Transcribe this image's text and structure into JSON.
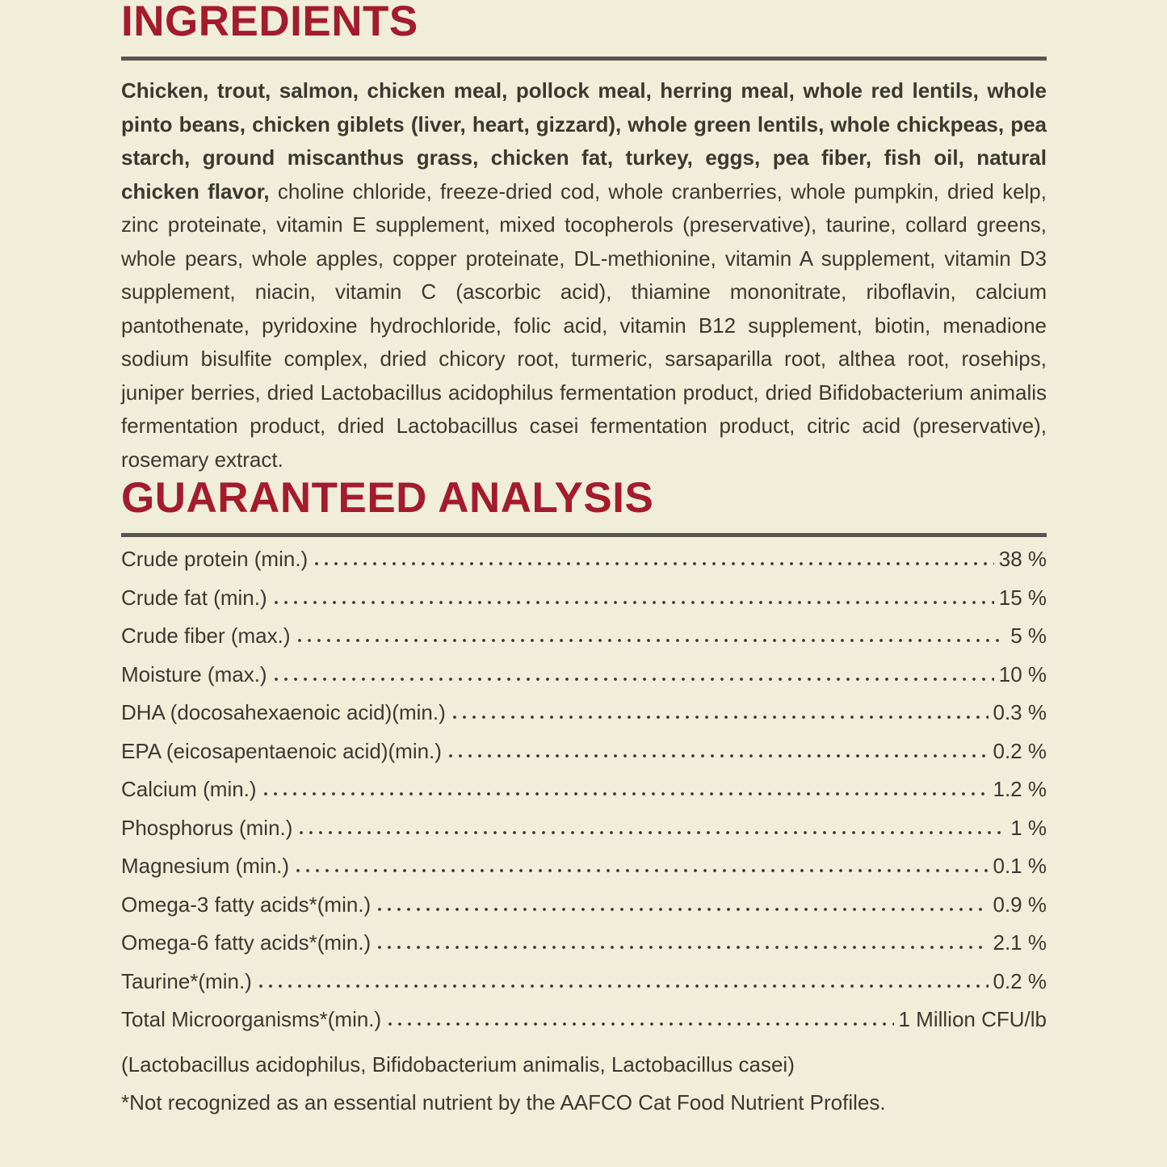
{
  "page": {
    "background_color": "#F0EED9",
    "accent_color": "#A31B2C",
    "text_color": "#3A392F",
    "rule_color": "#57564E"
  },
  "ingredients": {
    "title": "INGREDIENTS",
    "bold_text": "Chicken, trout, salmon, chicken meal, pollock meal, herring meal, whole red lentils, whole pinto beans, chicken giblets (liver, heart, gizzard), whole green lentils, whole chickpeas, pea starch, ground miscanthus grass, chicken fat, turkey, eggs, pea fiber, fish oil, natural chicken flavor,",
    "regular_text": " choline chloride, freeze-dried cod, whole cranberries, whole pumpkin, dried kelp, zinc proteinate, vitamin E supplement, mixed tocopherols (preservative), taurine, collard greens, whole pears, whole apples, copper proteinate, DL-methionine, vitamin A supplement, vitamin D3 supplement, niacin, vitamin C (ascorbic acid), thiamine mononitrate, riboflavin, calcium pantothenate, pyridoxine hydrochloride, folic acid, vitamin B12 supplement, biotin, menadione sodium bisulfite complex, dried chicory root, turmeric, sarsaparilla root, althea root, rosehips, juniper berries, dried Lactobacillus acidophilus fermentation product, dried Bifidobacterium animalis fermentation product, dried Lactobacillus casei fermentation product, citric acid (preservative), rosemary extract."
  },
  "guaranteed_analysis": {
    "title": "GUARANTEED ANALYSIS",
    "rows": [
      {
        "label": "Crude protein (min.)",
        "value": "38 %"
      },
      {
        "label": "Crude fat (min.)",
        "value": "15 %"
      },
      {
        "label": "Crude fiber (max.)",
        "value": "5 %"
      },
      {
        "label": "Moisture (max.)",
        "value": "10 %"
      },
      {
        "label": "DHA (docosahexaenoic acid)(min.)",
        "value": "0.3 %"
      },
      {
        "label": "EPA (eicosapentaenoic acid)(min.)",
        "value": "0.2 %"
      },
      {
        "label": "Calcium (min.)",
        "value": "1.2 %"
      },
      {
        "label": "Phosphorus (min.)",
        "value": "1 %"
      },
      {
        "label": "Magnesium (min.)",
        "value": "0.1 %"
      },
      {
        "label": "Omega-3 fatty acids*(min.)",
        "value": "0.9 %"
      },
      {
        "label": "Omega-6 fatty acids*(min.)",
        "value": "2.1 %"
      },
      {
        "label": "Taurine*(min.)",
        "value": "0.2 %"
      },
      {
        "label": "Total Microorganisms*(min.)",
        "value": "1 Million CFU/lb"
      }
    ],
    "species_note": "(Lactobacillus acidophilus, Bifidobacterium animalis, Lactobacillus casei)",
    "footnote": "*Not recognized as an essential nutrient by the AAFCO Cat Food Nutrient Profiles."
  }
}
